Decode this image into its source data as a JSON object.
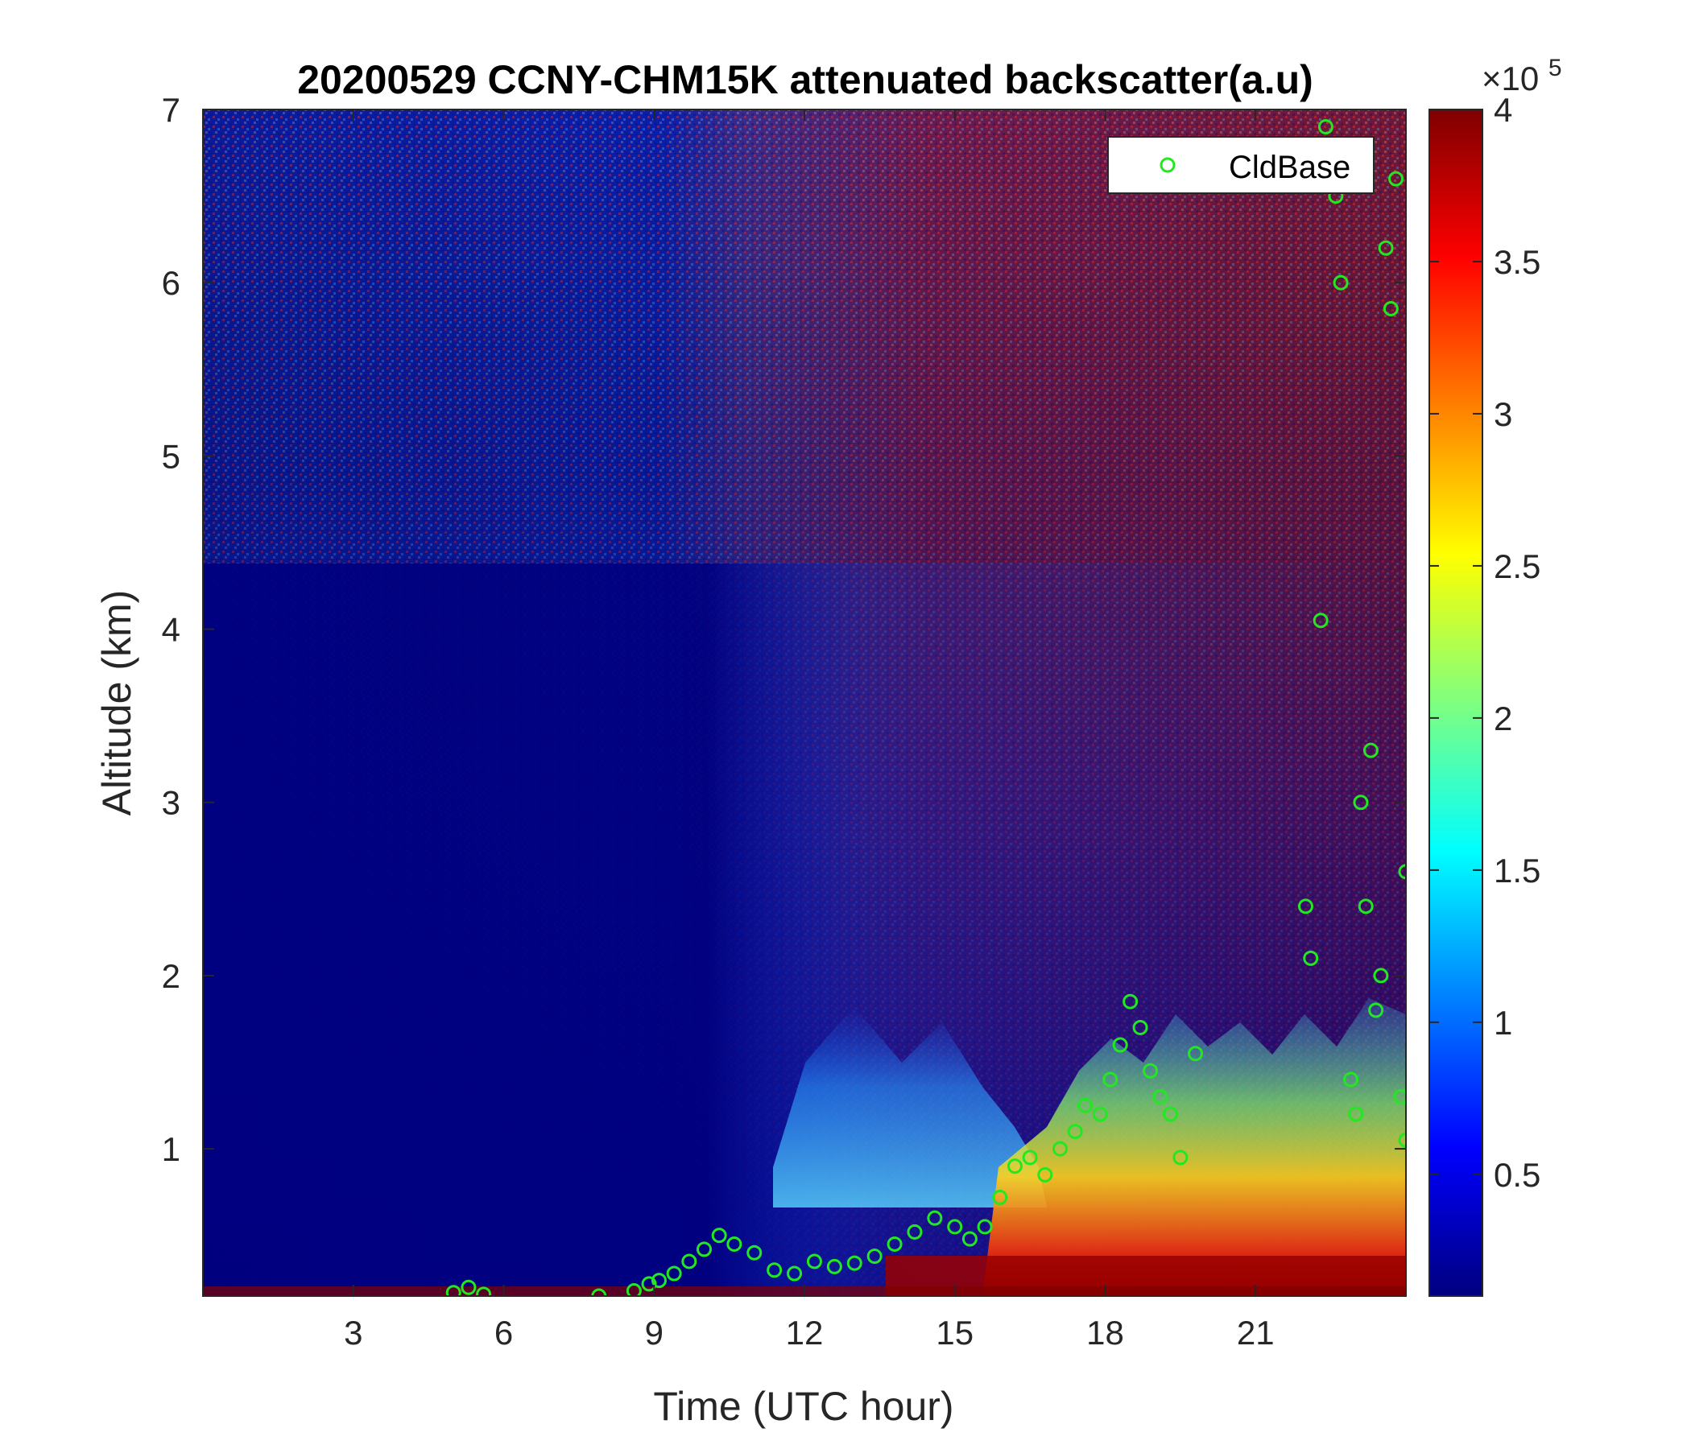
{
  "chart_data": {
    "type": "heatmap",
    "title": "20200529 CCNY-CHM15K attenuated backscatter(a.u)",
    "xlabel": "Time (UTC hour)",
    "ylabel": "Altitude (km)",
    "xlim": [
      0,
      24
    ],
    "ylim": [
      0.15,
      7
    ],
    "x_ticks": [
      3,
      6,
      9,
      12,
      15,
      18,
      21
    ],
    "y_ticks": [
      1,
      2,
      3,
      4,
      5,
      6,
      7
    ],
    "colorbar": {
      "range": [
        0.1,
        4
      ],
      "ticks": [
        0.5,
        1,
        1.5,
        2,
        2.5,
        3,
        3.5,
        4
      ],
      "exponent_label": "×10",
      "exponent_power": "5",
      "colormap": "jet"
    },
    "background_field": [
      {
        "x_from": 0,
        "x_to": 10,
        "y_from": 0.15,
        "y_to": 7,
        "level": "low-noise",
        "note": "dark blue with light noise increasing with altitude"
      },
      {
        "x_from": 10,
        "x_to": 24,
        "y_from": 1.5,
        "y_to": 7,
        "level": "high-noise",
        "note": "mixed dark red and blue speckle"
      },
      {
        "x_from": 11,
        "x_to": 16,
        "y_from": 0.6,
        "y_to": 1.5,
        "level": "light-blue plumes"
      },
      {
        "x_from": 15.5,
        "x_to": 24,
        "y_from": 0.15,
        "y_to": 1.5,
        "level": "high",
        "note": "red / yellow boundary layer aerosol"
      }
    ],
    "series": [
      {
        "name": "CldBase",
        "marker": "circle",
        "color": "#22e822",
        "points": [
          [
            5.0,
            0.17
          ],
          [
            5.3,
            0.2
          ],
          [
            5.6,
            0.16
          ],
          [
            7.9,
            0.15
          ],
          [
            8.6,
            0.18
          ],
          [
            8.9,
            0.22
          ],
          [
            9.1,
            0.24
          ],
          [
            9.4,
            0.28
          ],
          [
            9.7,
            0.35
          ],
          [
            10.0,
            0.42
          ],
          [
            10.3,
            0.5
          ],
          [
            10.6,
            0.45
          ],
          [
            11.0,
            0.4
          ],
          [
            11.4,
            0.3
          ],
          [
            11.8,
            0.28
          ],
          [
            12.2,
            0.35
          ],
          [
            12.6,
            0.32
          ],
          [
            13.0,
            0.34
          ],
          [
            13.4,
            0.38
          ],
          [
            13.8,
            0.45
          ],
          [
            14.2,
            0.52
          ],
          [
            14.6,
            0.6
          ],
          [
            15.0,
            0.55
          ],
          [
            15.3,
            0.48
          ],
          [
            15.6,
            0.55
          ],
          [
            15.9,
            0.72
          ],
          [
            16.2,
            0.9
          ],
          [
            16.5,
            0.95
          ],
          [
            16.8,
            0.85
          ],
          [
            17.1,
            1.0
          ],
          [
            17.4,
            1.1
          ],
          [
            17.6,
            1.25
          ],
          [
            17.9,
            1.2
          ],
          [
            18.1,
            1.4
          ],
          [
            18.3,
            1.6
          ],
          [
            18.5,
            1.85
          ],
          [
            18.7,
            1.7
          ],
          [
            18.9,
            1.45
          ],
          [
            19.1,
            1.3
          ],
          [
            19.3,
            1.2
          ],
          [
            19.5,
            0.95
          ],
          [
            19.8,
            1.55
          ],
          [
            22.0,
            2.4
          ],
          [
            22.1,
            2.1
          ],
          [
            22.3,
            4.05
          ],
          [
            22.4,
            6.9
          ],
          [
            22.6,
            6.5
          ],
          [
            22.7,
            6.0
          ],
          [
            22.9,
            1.4
          ],
          [
            23.0,
            1.2
          ],
          [
            23.1,
            3.0
          ],
          [
            23.2,
            2.4
          ],
          [
            23.3,
            3.3
          ],
          [
            23.4,
            1.8
          ],
          [
            23.5,
            2.0
          ],
          [
            23.6,
            6.2
          ],
          [
            23.7,
            5.85
          ],
          [
            23.8,
            6.6
          ],
          [
            23.9,
            1.3
          ],
          [
            24.0,
            2.6
          ],
          [
            24.0,
            1.05
          ]
        ]
      }
    ],
    "legend": {
      "position": "top-right"
    }
  }
}
